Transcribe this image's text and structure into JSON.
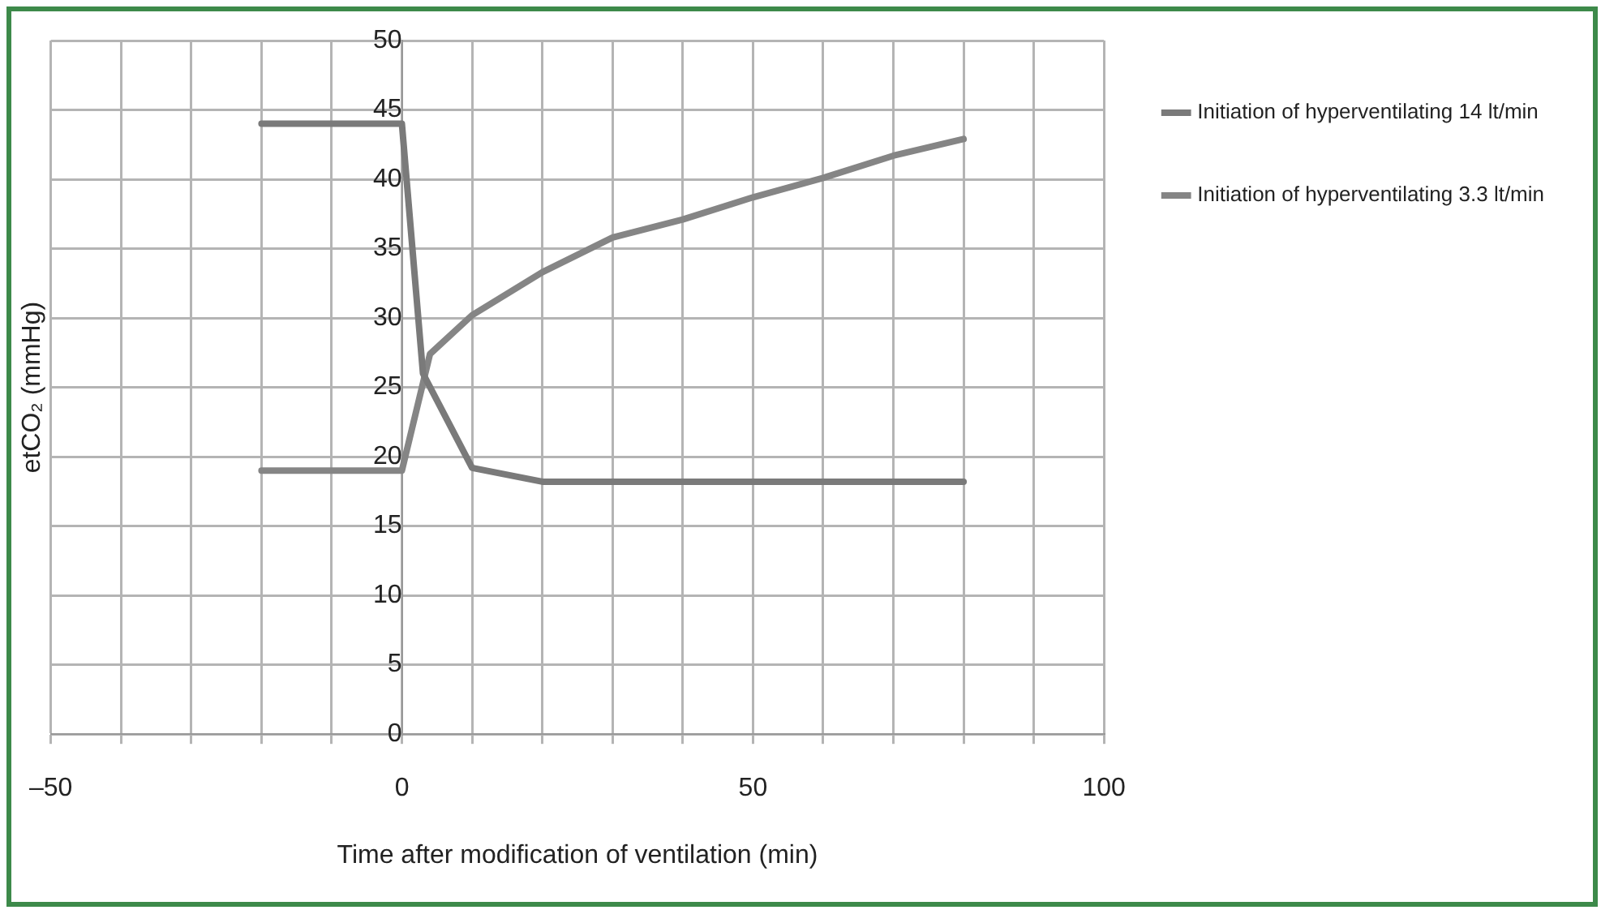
{
  "chart_data": {
    "type": "line",
    "xlabel": "Time after modification of ventilation (min)",
    "ylabel": "etCO₂ (mmHg)",
    "xlim": [
      -50,
      100
    ],
    "xticks": [
      {
        "value": -50,
        "label": "–50"
      },
      {
        "value": -40,
        "label": null
      },
      {
        "value": -30,
        "label": null
      },
      {
        "value": -20,
        "label": null
      },
      {
        "value": -10,
        "label": null
      },
      0,
      {
        "value": 10,
        "label": null
      },
      {
        "value": 20,
        "label": null
      },
      {
        "value": 30,
        "label": null
      },
      {
        "value": 40,
        "label": null
      },
      50,
      {
        "value": 60,
        "label": null
      },
      {
        "value": 70,
        "label": null
      },
      {
        "value": 80,
        "label": null
      },
      {
        "value": 90,
        "label": null
      },
      100
    ],
    "ylim": [
      0,
      50
    ],
    "yticks": [
      0,
      5,
      10,
      15,
      20,
      25,
      30,
      35,
      40,
      45,
      50
    ],
    "grid": true,
    "legend": "right",
    "marker": "none",
    "line_style": "solid",
    "series": [
      {
        "name": "Initiation of hyperventilating 14 lt/min",
        "color": "#7a7a7a",
        "x": [
          -20,
          0,
          3,
          10,
          20,
          50,
          80
        ],
        "values": [
          44,
          44,
          26,
          19.2,
          18.2,
          18.2,
          18.2
        ]
      },
      {
        "name": "Initiation of hyperventilating 3.3 lt/min",
        "color": "#858585",
        "x": [
          -20,
          0,
          4,
          10,
          20,
          30,
          40,
          50,
          60,
          70,
          80
        ],
        "values": [
          19,
          19,
          27.4,
          30.2,
          33.3,
          35.8,
          37.1,
          38.7,
          40.1,
          41.7,
          42.9
        ]
      }
    ]
  }
}
